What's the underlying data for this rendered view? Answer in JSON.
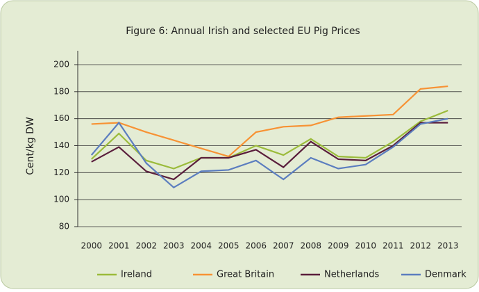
{
  "chart_data": {
    "type": "line",
    "title": "Figure 6: Annual Irish and selected EU Pig Prices",
    "y_label": "Cent/kg DW",
    "categories": [
      "2000",
      "2001",
      "2002",
      "2003",
      "2004",
      "2005",
      "2006",
      "2007",
      "2008",
      "2009",
      "2010",
      "2011",
      "2012",
      "2013"
    ],
    "series": [
      {
        "name": "Ireland",
        "color": "#9bbb3b",
        "values": [
          130,
          149,
          129,
          123,
          131,
          131,
          140,
          133,
          145,
          132,
          131,
          143,
          158,
          166
        ]
      },
      {
        "name": "Great Britain",
        "color": "#f79234",
        "values": [
          156,
          157,
          150,
          144,
          138,
          132,
          150,
          154,
          155,
          161,
          162,
          163,
          182,
          184
        ]
      },
      {
        "name": "Netherlands",
        "color": "#5a1e3c",
        "values": [
          128,
          139,
          121,
          115,
          131,
          131,
          137,
          124,
          143,
          130,
          129,
          140,
          157,
          157
        ]
      },
      {
        "name": "Denmark",
        "color": "#5b7dbf",
        "values": [
          133,
          157,
          127,
          109,
          121,
          122,
          129,
          115,
          131,
          123,
          126,
          139,
          156,
          160
        ]
      }
    ],
    "ylim": [
      80,
      200
    ],
    "yticks": [
      80,
      100,
      120,
      140,
      160,
      180,
      200
    ],
    "grid": true,
    "legend": "bottom"
  }
}
